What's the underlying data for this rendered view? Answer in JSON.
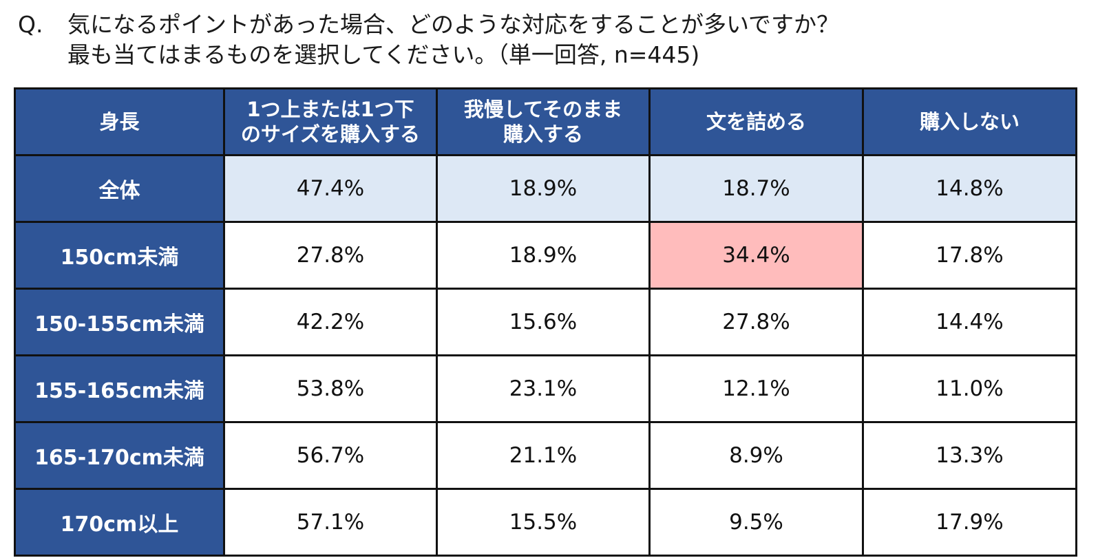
{
  "question": {
    "prefix": "Q.",
    "line1": "気になるポイントがあった場合、どのような対応をすることが多いですか？",
    "line2": "最も当てはまるものを選択してください。（単一回答, n=445)"
  },
  "colors": {
    "header_bg": "#2f5597",
    "overall_row_bg": "#dde8f5",
    "highlight_bg": "#ffbcbc",
    "border": "#111111"
  },
  "chart_data": {
    "type": "table",
    "columns": [
      "身長",
      "1つ上または1つ下\nのサイズを購入する",
      "我慢してそのまま\n購入する",
      "文を詰める",
      "購入しない"
    ],
    "rows": [
      {
        "label": "全体",
        "values": [
          "47.4%",
          "18.9%",
          "18.7%",
          "14.8%"
        ]
      },
      {
        "label": "150cm未満",
        "values": [
          "27.8%",
          "18.9%",
          "34.4%",
          "17.8%"
        ]
      },
      {
        "label": "150-155cm未満",
        "values": [
          "42.2%",
          "15.6%",
          "27.8%",
          "14.4%"
        ]
      },
      {
        "label": "155-165cm未満",
        "values": [
          "53.8%",
          "23.1%",
          "12.1%",
          "11.0%"
        ]
      },
      {
        "label": "165-170cm未満",
        "values": [
          "56.7%",
          "21.1%",
          "8.9%",
          "13.3%"
        ]
      },
      {
        "label": "170cm以上",
        "values": [
          "57.1%",
          "15.5%",
          "9.5%",
          "17.9%"
        ]
      }
    ],
    "highlighted_cell": {
      "row": "150cm未満",
      "column": "文を詰める",
      "value": "34.4%"
    }
  }
}
